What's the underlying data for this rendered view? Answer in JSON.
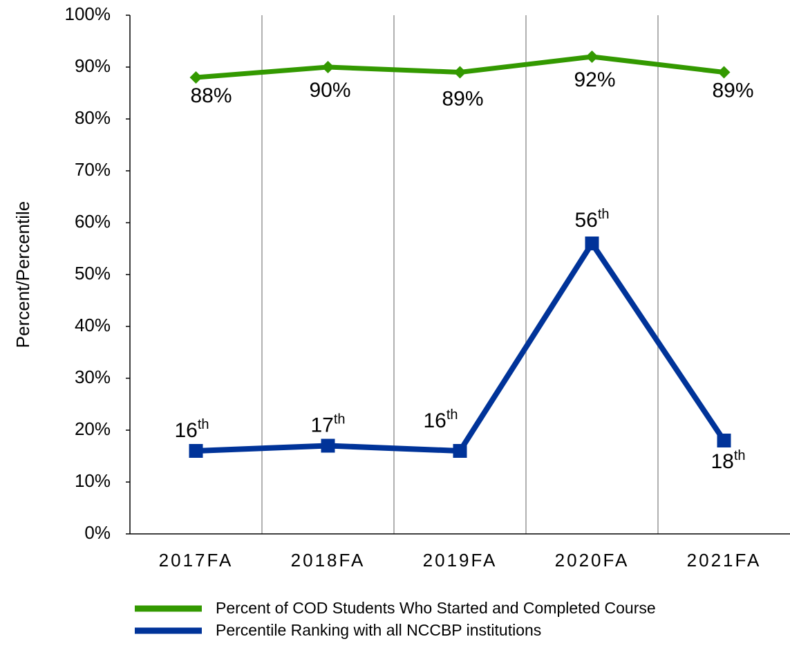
{
  "chart_data": {
    "type": "line",
    "y_label": "Percent/Percentile",
    "categories": [
      "2017FA",
      "2018FA",
      "2019FA",
      "2020FA",
      "2021FA"
    ],
    "series": [
      {
        "name": "Percent of COD Students Who Started and Completed Course",
        "color": "#339900",
        "marker": "diamond",
        "values": [
          88,
          90,
          89,
          92,
          89
        ],
        "value_labels": [
          "88%",
          "90%",
          "89%",
          "92%",
          "89%"
        ]
      },
      {
        "name": "Percentile Ranking with all NCCBP institutions",
        "color": "#003399",
        "marker": "square",
        "values": [
          16,
          17,
          16,
          56,
          18
        ],
        "value_labels": [
          "16th",
          "17th",
          "16th",
          "56th",
          "18th"
        ]
      }
    ],
    "ylim": [
      0,
      100
    ],
    "yticks": [
      {
        "value": 0,
        "label": "0%"
      },
      {
        "value": 10,
        "label": "10%"
      },
      {
        "value": 20,
        "label": "20%"
      },
      {
        "value": 30,
        "label": "30%"
      },
      {
        "value": 40,
        "label": "40%"
      },
      {
        "value": 50,
        "label": "50%"
      },
      {
        "value": 60,
        "label": "60%"
      },
      {
        "value": 70,
        "label": "70%"
      },
      {
        "value": 80,
        "label": "80%"
      },
      {
        "value": 90,
        "label": "90%"
      },
      {
        "value": 100,
        "label": "100%"
      }
    ],
    "legend": "bottom"
  }
}
